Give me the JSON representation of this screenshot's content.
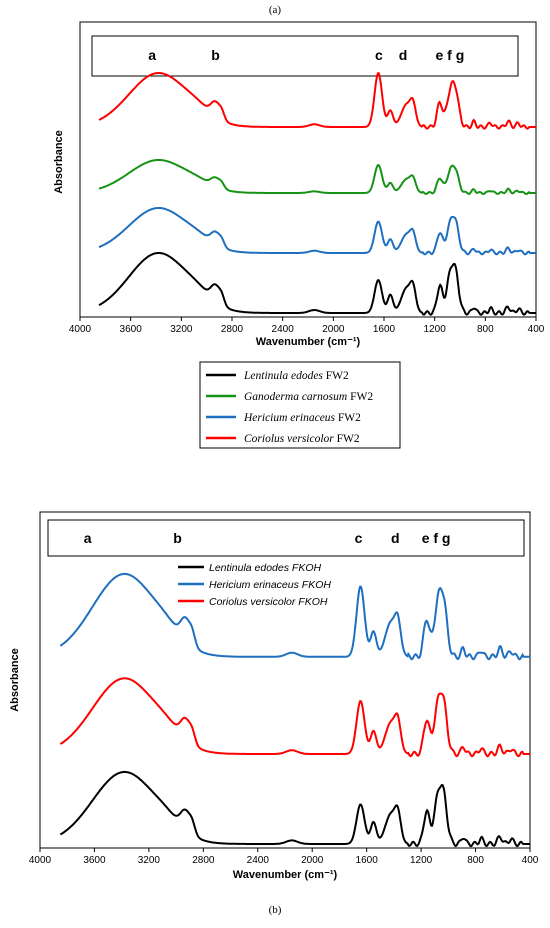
{
  "figure": {
    "panel_a_label": "(a)",
    "panel_b_label": "(b)"
  },
  "chart_data": [
    {
      "id": "a",
      "type": "line",
      "xlabel": "Wavenumber (cm⁻¹)",
      "ylabel": "Absorbance",
      "xlim": [
        4000,
        400
      ],
      "x_reversed": true,
      "xticks": [
        4000,
        3600,
        3200,
        2800,
        2400,
        2000,
        1600,
        1200,
        800,
        400
      ],
      "band_labels": [
        {
          "text": "a",
          "x": 3430
        },
        {
          "text": "b",
          "x": 2930
        },
        {
          "text": "c",
          "x": 1640
        },
        {
          "text": "d",
          "x": 1450
        },
        {
          "text": "e f g",
          "x": 1080
        }
      ],
      "series": [
        {
          "name": "Lentinula edodes FW2",
          "color": "#000000",
          "offset": 0.0,
          "scale": 1.0,
          "legend": [
            {
              "t": "Lentinula",
              "i": true
            },
            {
              "t": "  edodes",
              "i": true
            },
            {
              "t": " FW2",
              "i": false
            }
          ]
        },
        {
          "name": "Hericium erinaceus FW2",
          "color": "#1f6fc1",
          "offset": 1.0,
          "scale": 0.75,
          "legend": [
            {
              "t": "Hericium erinaceus",
              "i": true
            },
            {
              "t": " FW2",
              "i": false
            }
          ]
        },
        {
          "name": "Ganoderma carnosum FW2",
          "color": "#169316",
          "offset": 2.0,
          "scale": 0.55,
          "legend": [
            {
              "t": "Ganoderma carnosum",
              "i": true
            },
            {
              "t": " FW2",
              "i": false
            }
          ]
        },
        {
          "name": "Coriolus versicolor FW2",
          "color": "#ff0000",
          "offset": 3.1,
          "scale": 0.9,
          "legend": [
            {
              "t": "Coriolus versicolor",
              "i": true
            },
            {
              "t": " FW2",
              "i": false
            }
          ]
        }
      ],
      "legend_order": [
        0,
        2,
        1,
        3
      ]
    },
    {
      "id": "b",
      "type": "line",
      "xlabel": "Wavenumber (cm⁻¹)",
      "ylabel": "Absorbance",
      "xlim": [
        4000,
        400
      ],
      "x_reversed": true,
      "xticks": [
        4000,
        3600,
        3200,
        2800,
        2400,
        2000,
        1600,
        1200,
        800,
        400
      ],
      "band_labels": [
        {
          "text": "a",
          "x": 3650
        },
        {
          "text": "b",
          "x": 2990
        },
        {
          "text": "c",
          "x": 1660
        },
        {
          "text": "d",
          "x": 1390
        },
        {
          "text": "e f g",
          "x": 1090
        }
      ],
      "series": [
        {
          "name": "Lentinula edodes FKOH",
          "color": "#000000",
          "offset": 0.0,
          "scale": 1.0
        },
        {
          "name": "Coriolus versicolor FKOH",
          "color": "#ff0000",
          "offset": 1.25,
          "scale": 1.05
        },
        {
          "name": "Hericium erinaceus FKOH",
          "color": "#1f6fc1",
          "offset": 2.6,
          "scale": 1.15
        }
      ],
      "legend_order": [
        0,
        2,
        1
      ]
    }
  ]
}
